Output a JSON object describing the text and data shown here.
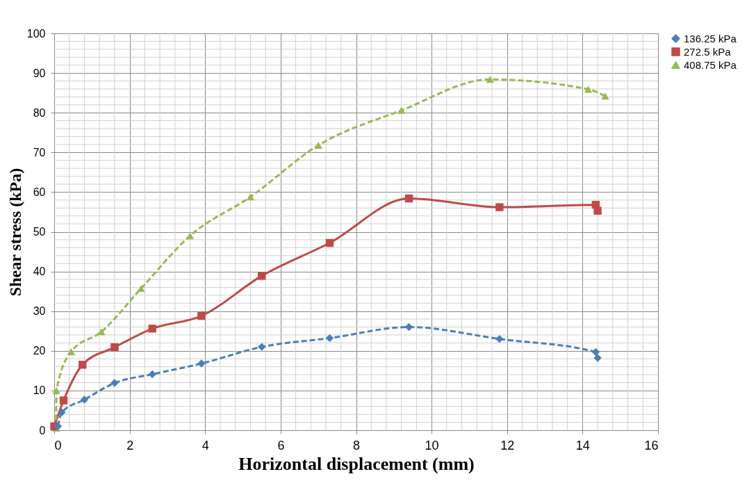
{
  "chart_data": {
    "type": "line",
    "xlabel": "Horizontal displacement (mm)",
    "ylabel": "Shear stress (kPa)",
    "xlim": [
      0,
      16
    ],
    "xticks": [
      0,
      2,
      4,
      6,
      8,
      10,
      12,
      14,
      16
    ],
    "ylim": [
      0,
      100
    ],
    "yticks": [
      0,
      10,
      20,
      30,
      40,
      50,
      60,
      70,
      80,
      90,
      100
    ],
    "grid": true,
    "legend": "right",
    "series": [
      {
        "name": "136.25 kPa",
        "color": "#4a7ebb",
        "marker": "diamond",
        "line_style": "dashed",
        "x": [
          0.1,
          0.2,
          0.8,
          1.6,
          2.6,
          3.9,
          5.5,
          7.3,
          9.4,
          11.8,
          14.35,
          14.4
        ],
        "values": [
          1,
          4.5,
          7.7,
          11.9,
          14.1,
          16.8,
          21,
          23.2,
          26,
          23,
          19.7,
          18.2
        ]
      },
      {
        "name": "272.5 kPa",
        "color": "#be4b48",
        "marker": "square",
        "line_style": "solid",
        "x": [
          0,
          0.25,
          0.75,
          1.6,
          2.6,
          3.9,
          5.5,
          7.3,
          9.4,
          11.8,
          14.35,
          14.4
        ],
        "values": [
          1,
          7.5,
          16.5,
          20.9,
          25.6,
          28.8,
          38.9,
          47.2,
          58.4,
          56.2,
          56.8,
          55.3
        ]
      },
      {
        "name": "408.75 kPa",
        "color": "#98b954",
        "marker": "triangle",
        "line_style": "dashed",
        "x": [
          0.05,
          0.06,
          0.45,
          1.25,
          2.3,
          3.6,
          5.2,
          7.0,
          9.2,
          11.55,
          14.15,
          14.6
        ],
        "values": [
          0.5,
          10,
          19.8,
          24.8,
          35.7,
          49,
          58.8,
          71.8,
          80.6,
          88.4,
          85.9,
          84.2
        ]
      }
    ]
  }
}
